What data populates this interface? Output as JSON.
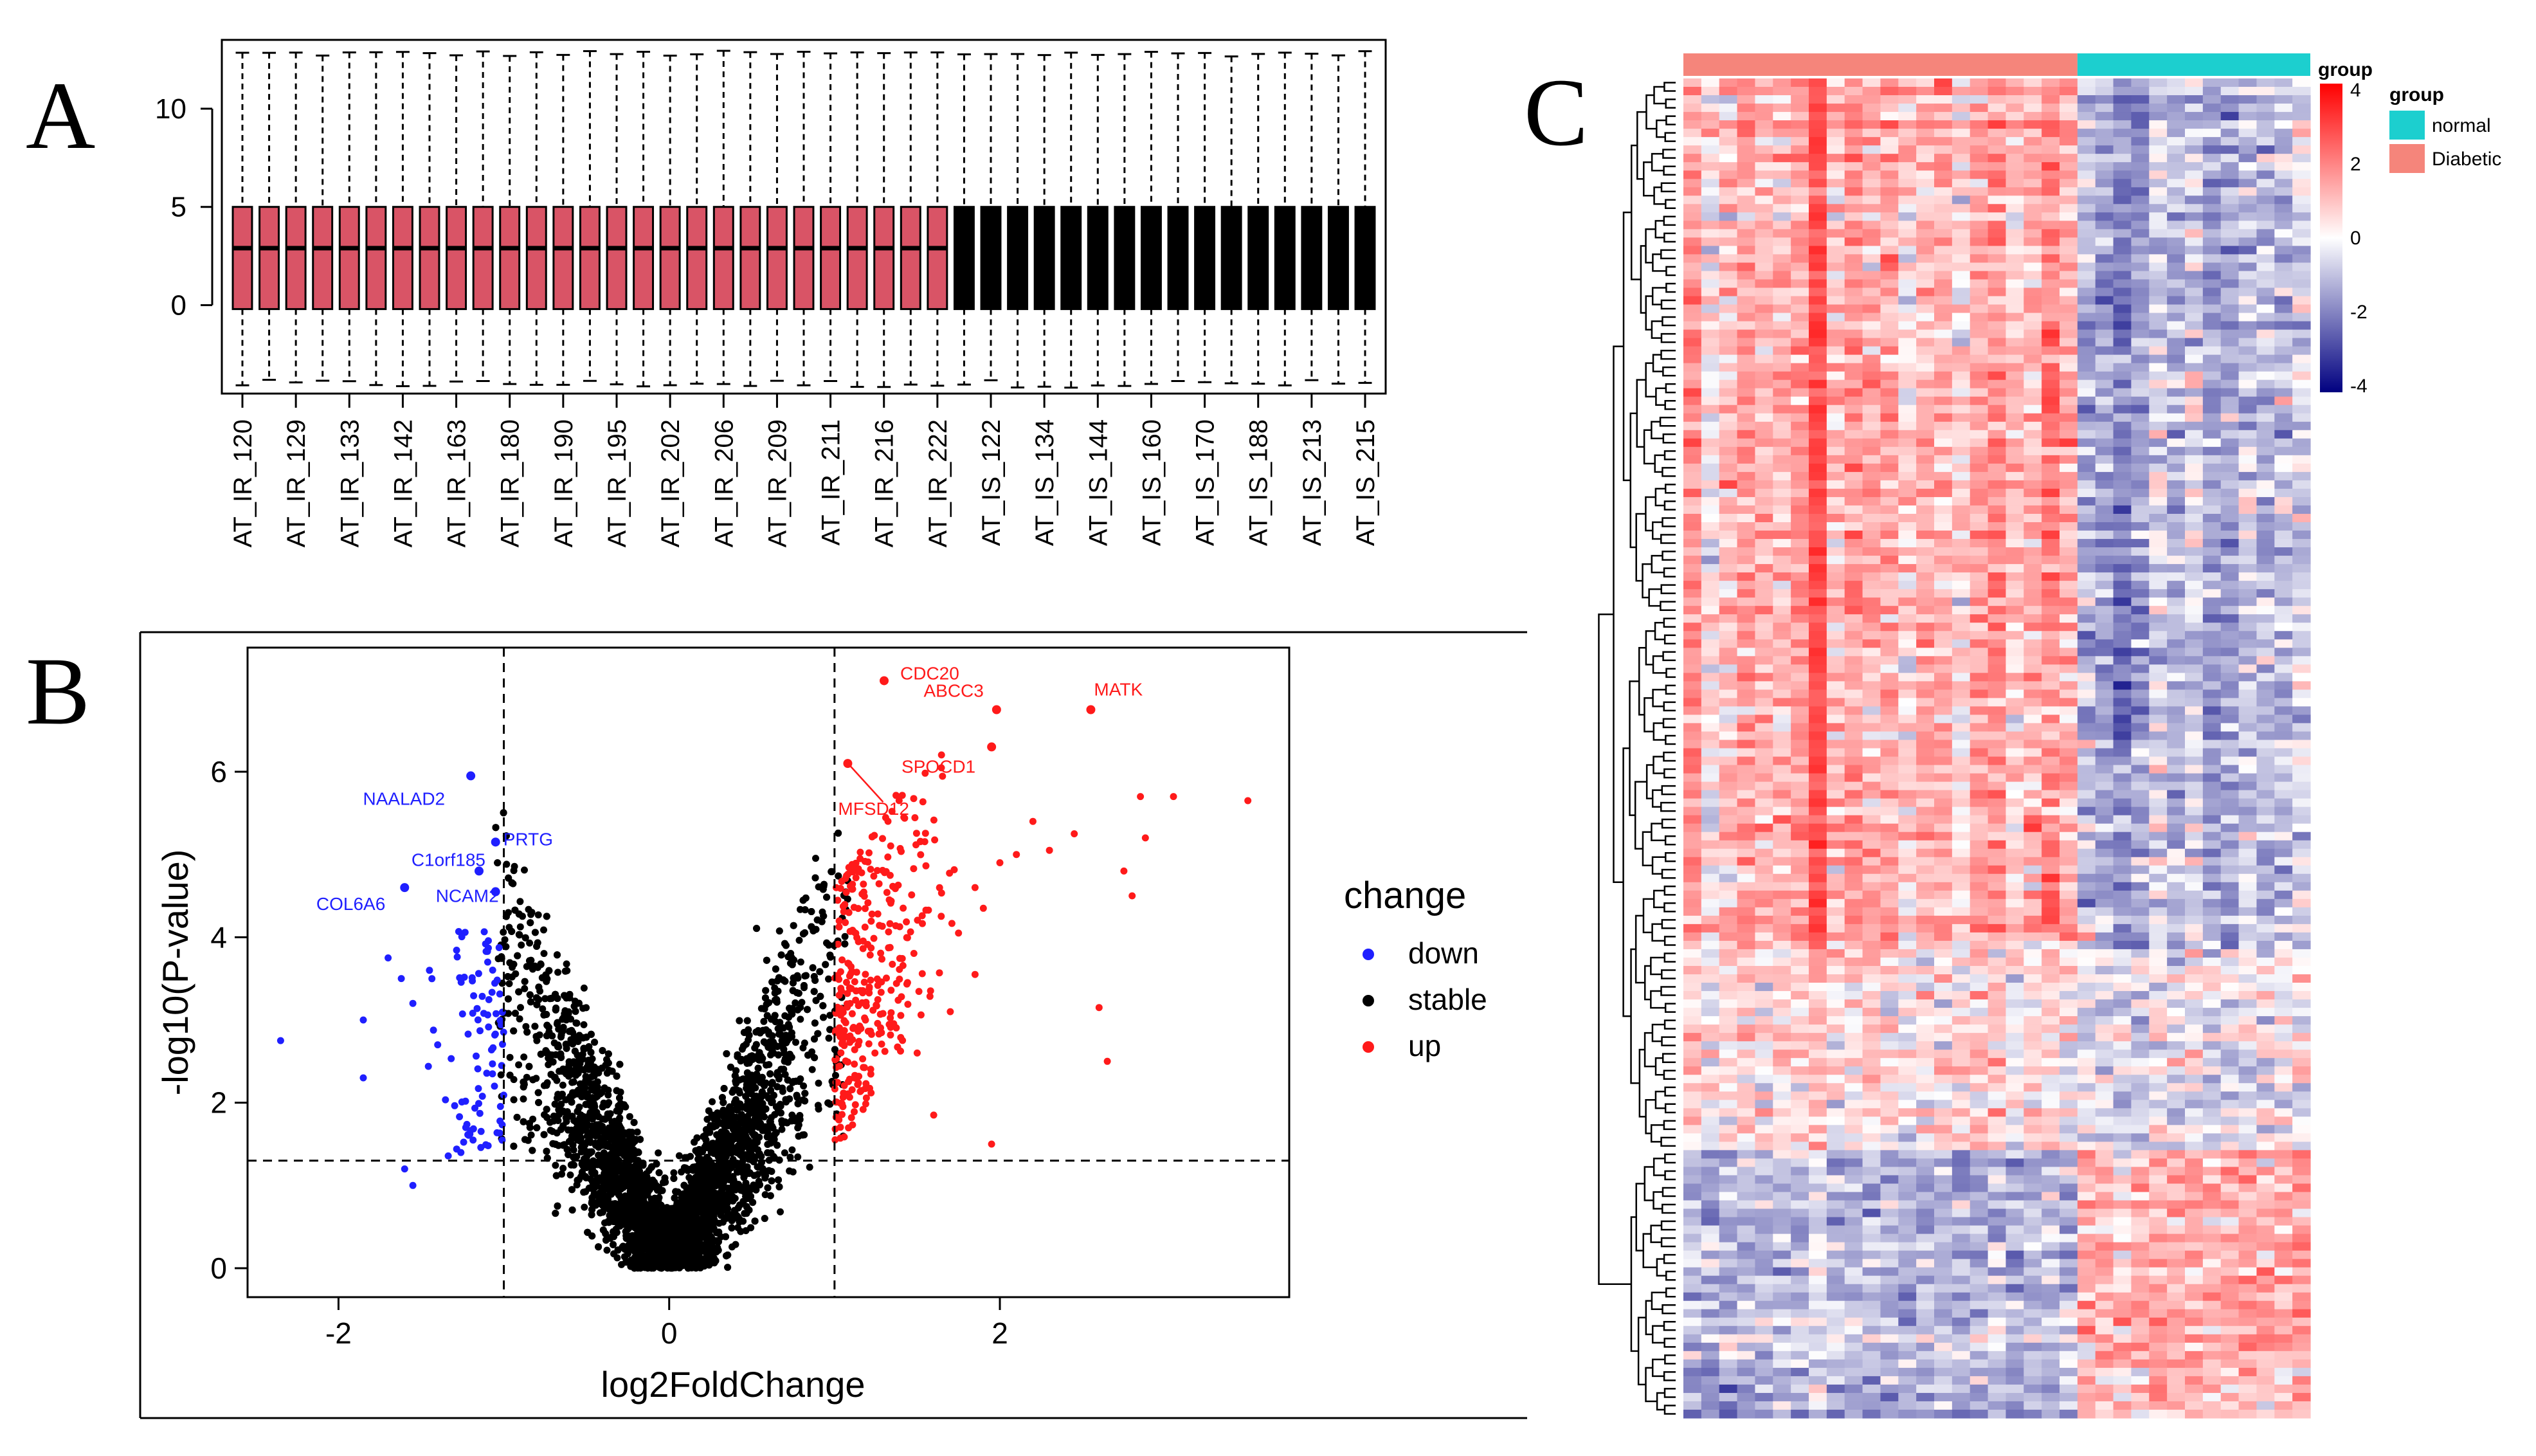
{
  "panels": {
    "a": "A",
    "b": "B",
    "c": "C"
  },
  "colors": {
    "diabetic_box": "#d95466",
    "normal_box": "#000000",
    "down": "#1f1fff",
    "stable": "#000000",
    "up": "#ff1a1a",
    "heat_high": "#ff0000",
    "heat_mid": "#ffffff",
    "heat_low": "#000080",
    "group_normal": "#1ccfcf",
    "group_diabetic": "#f5857b"
  },
  "chart_data": [
    {
      "id": "A",
      "type": "box",
      "title": "",
      "xlabel": "",
      "ylabel": "",
      "yticks": [
        0,
        5,
        10
      ],
      "ylim": [
        -4.5,
        13.5
      ],
      "categories": [
        "AT_IR_120",
        "AT_IR_129",
        "AT_IR_133",
        "AT_IR_142",
        "AT_IR_163",
        "AT_IR_180",
        "AT_IR_190",
        "AT_IR_195",
        "AT_IR_202",
        "AT_IR_206",
        "AT_IR_209",
        "AT_IR_211",
        "AT_IR_216",
        "AT_IR_222",
        "AT_IS_122",
        "AT_IS_134",
        "AT_IS_144",
        "AT_IS_160",
        "AT_IS_170",
        "AT_IS_188",
        "AT_IS_213",
        "AT_IS_215"
      ],
      "labeled_every": 2,
      "n_boxes": 43,
      "n_group1": 27,
      "stats": {
        "whisker_low": -4.0,
        "q1": -0.2,
        "median": 2.9,
        "q3": 5.0,
        "whisker_high": 12.8
      }
    },
    {
      "id": "B",
      "type": "scatter",
      "title": "",
      "xlabel": "log2FoldChange",
      "ylabel": "-log10(P-value)",
      "xlim": [
        -2.55,
        3.75
      ],
      "ylim": [
        -0.35,
        7.5
      ],
      "xticks": [
        -2,
        0,
        2
      ],
      "yticks": [
        0,
        2,
        4,
        6
      ],
      "thresholds": {
        "fc": [
          -1,
          1
        ],
        "p": 1.3
      },
      "legend": {
        "title": "change",
        "entries": [
          "down",
          "stable",
          "up"
        ]
      },
      "labeled_points": [
        {
          "label": "CDC20",
          "x": 1.3,
          "y": 7.1,
          "group": "up"
        },
        {
          "label": "MATK",
          "x": 2.55,
          "y": 6.75,
          "group": "up"
        },
        {
          "label": "ABCC3",
          "x": 1.98,
          "y": 6.75,
          "group": "up"
        },
        {
          "label": "SPOCD1",
          "x": 1.95,
          "y": 6.3,
          "group": "up"
        },
        {
          "label": "MFSD12",
          "x": 1.08,
          "y": 6.1,
          "group": "up"
        },
        {
          "label": "NAALAD2",
          "x": -1.2,
          "y": 5.95,
          "group": "down"
        },
        {
          "label": "PRTG",
          "x": -1.05,
          "y": 5.15,
          "group": "down"
        },
        {
          "label": "C1orf185",
          "x": -1.15,
          "y": 4.8,
          "group": "down"
        },
        {
          "label": "NCAM2",
          "x": -1.05,
          "y": 4.55,
          "group": "down"
        },
        {
          "label": "COL6A6",
          "x": -1.6,
          "y": 4.6,
          "group": "down"
        }
      ],
      "extreme_points": {
        "up": [
          [
            3.5,
            5.65
          ],
          [
            3.05,
            5.7
          ],
          [
            2.85,
            5.7
          ],
          [
            2.88,
            5.2
          ],
          [
            2.8,
            4.5
          ],
          [
            2.75,
            4.8
          ],
          [
            2.6,
            3.15
          ],
          [
            2.65,
            2.5
          ],
          [
            2.45,
            5.25
          ],
          [
            2.3,
            5.05
          ],
          [
            2.2,
            5.4
          ],
          [
            2.1,
            5.0
          ],
          [
            2.0,
            4.9
          ],
          [
            1.9,
            4.35
          ],
          [
            1.95,
            1.5
          ],
          [
            1.6,
            1.85
          ],
          [
            1.5,
            2.6
          ],
          [
            1.7,
            3.1
          ],
          [
            1.85,
            3.55
          ],
          [
            1.75,
            4.05
          ],
          [
            1.85,
            4.6
          ]
        ],
        "down": [
          [
            -2.35,
            2.75
          ],
          [
            -1.85,
            2.3
          ],
          [
            -1.85,
            3.0
          ],
          [
            -1.7,
            3.75
          ],
          [
            -1.62,
            3.5
          ],
          [
            -1.55,
            3.2
          ],
          [
            -1.45,
            3.6
          ],
          [
            -1.6,
            1.2
          ],
          [
            -1.55,
            1.0
          ],
          [
            -1.4,
            2.7
          ]
        ]
      },
      "n_stable_points": 7000,
      "n_up_points": 320,
      "n_down_points": 90
    },
    {
      "id": "C",
      "type": "heatmap",
      "n_rows": 160,
      "n_cols": 35,
      "n_diabetic_cols": 22,
      "color_scale": {
        "ticks": [
          4,
          2,
          0,
          -2,
          -4
        ],
        "range": [
          -4,
          4
        ]
      },
      "legend_title_scale": "group",
      "legend_title_group": "group",
      "groups": [
        "normal",
        "Diabetic"
      ]
    }
  ]
}
